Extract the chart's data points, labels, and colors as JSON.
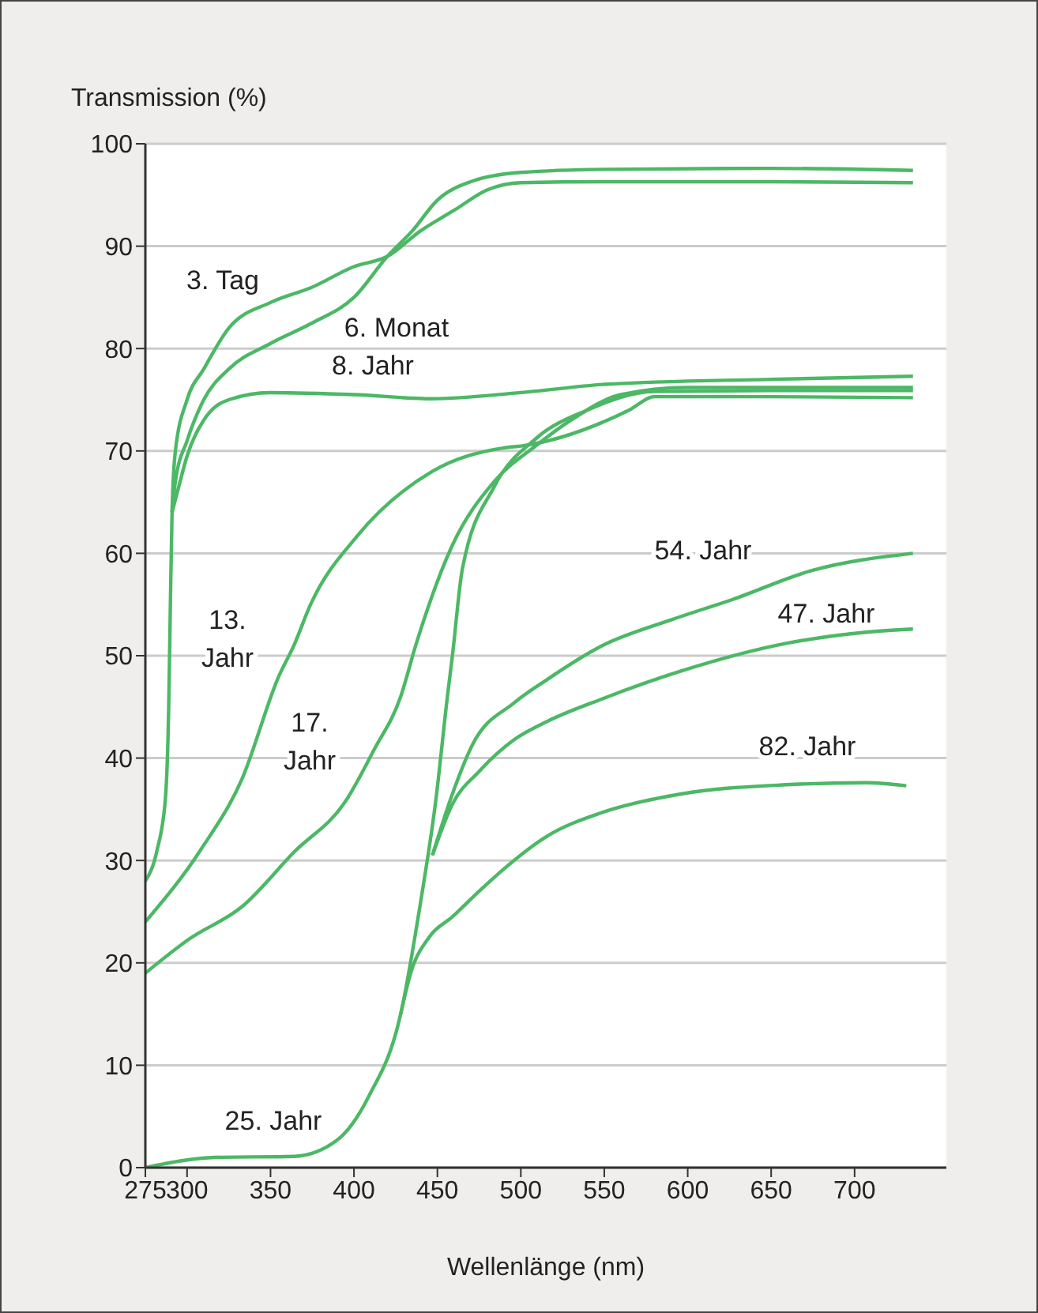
{
  "chart_data": {
    "type": "line",
    "xlabel": "Wellenlänge (nm)",
    "ylabel": "Transmission (%)",
    "xlim": [
      275,
      755
    ],
    "xticks": [
      275,
      300,
      350,
      400,
      450,
      500,
      550,
      600,
      650,
      700
    ],
    "ylim": [
      0,
      100
    ],
    "yticks": [
      0,
      10,
      20,
      30,
      40,
      50,
      60,
      70,
      80,
      90,
      100
    ],
    "grid": "y",
    "marker": "none",
    "line_style": "solid",
    "series": [
      {
        "name": "3. Tag",
        "color": "#4cb866",
        "x": [
          275,
          282,
          287,
          289,
          290,
          291,
          293,
          300,
          310,
          325,
          350,
          375,
          400,
          420,
          440,
          460,
          480,
          500,
          550,
          650,
          735
        ],
        "values": [
          28,
          31,
          36,
          45,
          55,
          64,
          70,
          75,
          78,
          82,
          84.5,
          86,
          88,
          89,
          91.5,
          93.5,
          95.5,
          96.2,
          96.3,
          96.3,
          96.2
        ]
      },
      {
        "name": "6. Monat",
        "color": "#4cb866",
        "x": [
          291,
          293,
          300,
          310,
          325,
          350,
          375,
          400,
          420,
          435,
          450,
          470,
          500,
          550,
          650,
          735
        ],
        "values": [
          64,
          67,
          71,
          75,
          78,
          80.5,
          82.5,
          85,
          89,
          91.5,
          94.5,
          96.3,
          97.2,
          97.5,
          97.6,
          97.4
        ]
      },
      {
        "name": "8. Jahr",
        "color": "#4cb866",
        "x": [
          291,
          295,
          300,
          310,
          325,
          350,
          400,
          447,
          500,
          550,
          650,
          735
        ],
        "values": [
          64,
          66.5,
          69.5,
          73,
          75,
          75.7,
          75.5,
          75.1,
          75.7,
          76.5,
          77,
          77.3
        ]
      },
      {
        "name": "13.\nJahr",
        "color": "#4cb866",
        "x": [
          275,
          308,
          333,
          355,
          364,
          374,
          402,
          447,
          490,
          501,
          565,
          580,
          650,
          735
        ],
        "values": [
          24,
          31,
          38,
          48,
          51,
          55,
          61.7,
          68,
          70.3,
          70.5,
          74,
          75.3,
          75.3,
          75.2
        ]
      },
      {
        "name": "17.\nJahr",
        "color": "#4cb866",
        "x": [
          275,
          301,
          333,
          364,
          395,
          412,
          428,
          437,
          459,
          484,
          509,
          530,
          560,
          600,
          735
        ],
        "values": [
          19,
          22.3,
          25.5,
          30.8,
          35.8,
          40.8,
          46,
          51,
          60.8,
          67,
          70.5,
          73,
          75.5,
          76.2,
          76.2
        ]
      },
      {
        "name": "25. Jahr",
        "color": "#4cb866",
        "x": [
          275,
          317,
          364,
          390,
          409,
          428,
          440,
          449,
          456,
          459,
          465,
          484,
          509,
          540,
          580,
          650,
          735
        ],
        "values": [
          0,
          1,
          1.1,
          2.7,
          7,
          15,
          26,
          35.8,
          46,
          50,
          58.5,
          66.5,
          71.2,
          74,
          75.8,
          75.9,
          75.9
        ]
      },
      {
        "name": "54. Jahr",
        "color": "#4cb866",
        "x": [
          447,
          459,
          471,
          496,
          516,
          549,
          590,
          627,
          674,
          735
        ],
        "values": [
          30.5,
          36.5,
          41.3,
          45.4,
          47.7,
          51,
          53.5,
          55.5,
          58.3,
          60
        ]
      },
      {
        "name": "47. Jahr",
        "color": "#4cb866",
        "x": [
          447,
          459,
          475,
          496,
          516,
          549,
          596,
          659,
          707,
          735
        ],
        "values": [
          30.5,
          35.5,
          38.7,
          41.8,
          43.6,
          45.8,
          48.5,
          51.2,
          52.3,
          52.6
        ]
      },
      {
        "name": "82. Jahr",
        "color": "#4cb866",
        "x": [
          428,
          434,
          445,
          459,
          475,
          490,
          516,
          549,
          596,
          659,
          707,
          731
        ],
        "values": [
          15,
          19,
          22.5,
          24.5,
          27,
          29.2,
          32.4,
          34.7,
          36.5,
          37.4,
          37.6,
          37.3
        ]
      }
    ]
  }
}
